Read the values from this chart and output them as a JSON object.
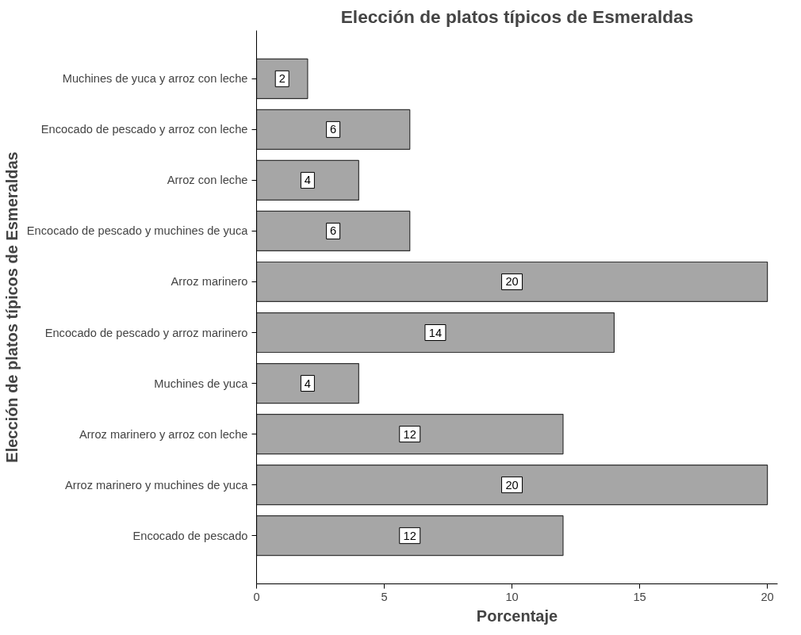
{
  "chart_data": {
    "type": "bar",
    "orientation": "horizontal",
    "title": "Elección de platos típicos de Esmeraldas",
    "xlabel": "Porcentaje",
    "ylabel": "Elección de platos típicos de Esmeraldas",
    "categories": [
      "Muchines de yuca y arroz con leche",
      "Encocado de pescado y arroz con leche",
      "Arroz con leche",
      "Encocado de pescado y muchines de yuca",
      "Arroz marinero",
      "Encocado de pescado y arroz marinero",
      "Muchines de yuca",
      "Arroz marinero y arroz con leche",
      "Arroz marinero y muchines de yuca",
      "Encocado de pescado"
    ],
    "values": [
      2,
      6,
      4,
      6,
      20,
      14,
      4,
      12,
      20,
      12
    ],
    "color": "#a6a6a6",
    "xlim": [
      0,
      20.4
    ],
    "xticks": [
      0,
      5,
      10,
      15,
      20
    ],
    "grid": false,
    "legend": false,
    "data_labels": true
  }
}
